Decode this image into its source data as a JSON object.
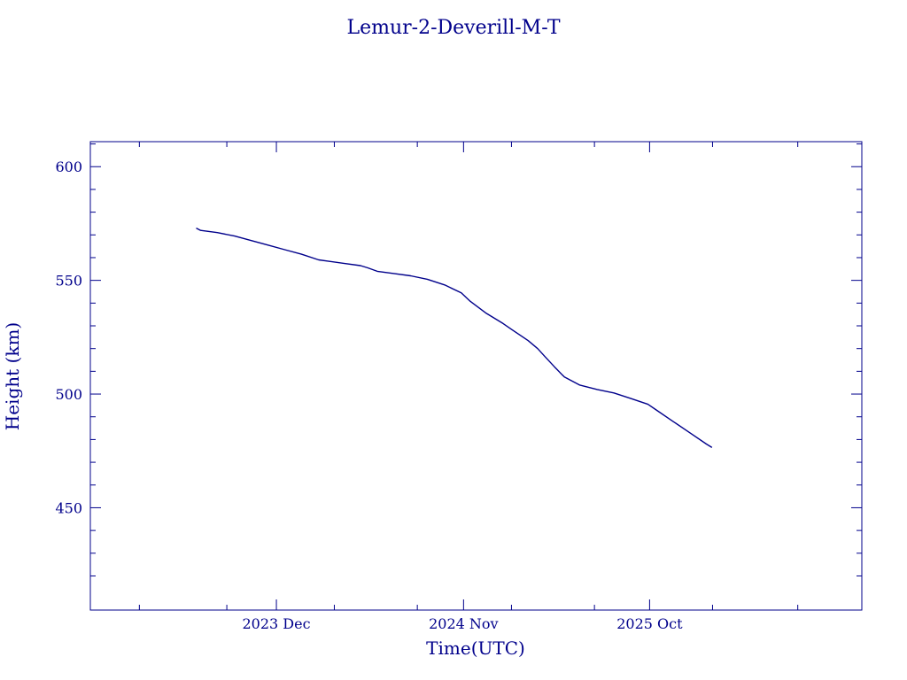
{
  "chart_data": {
    "type": "line",
    "title": "Lemur-2-Deverill-M-T",
    "xlabel": "Time(UTC)",
    "ylabel": "Height (km)",
    "xlim": [
      "2023-01-01",
      "2026-10-17"
    ],
    "ylim": [
      405,
      611
    ],
    "x_ticks": [
      {
        "date": "2023-12-01",
        "label": "2023 Dec"
      },
      {
        "date": "2024-11-01",
        "label": "2024 Nov"
      },
      {
        "date": "2025-10-01",
        "label": "2025 Oct"
      }
    ],
    "x_minor_ticks": [
      "2023-03-30",
      "2023-09-03",
      "2024-03-14",
      "2024-08-10",
      "2025-01-26",
      "2025-06-24",
      "2026-01-22",
      "2026-06-24"
    ],
    "y_ticks": [
      450,
      500,
      550,
      600
    ],
    "y_minor_ticks": [
      420,
      430,
      440,
      460,
      470,
      480,
      490,
      510,
      520,
      530,
      540,
      560,
      570,
      580,
      590,
      610
    ],
    "grid": false,
    "color": "#00008b",
    "series": [
      {
        "x": [
          "2023-07-10",
          "2023-07-18",
          "2023-08-17",
          "2023-09-17",
          "2023-10-17",
          "2023-11-16",
          "2023-12-16",
          "2024-01-15",
          "2024-02-15",
          "2024-03-01",
          "2024-03-31",
          "2024-04-30",
          "2024-05-13",
          "2024-05-30",
          "2024-06-29",
          "2024-07-29",
          "2024-08-28",
          "2024-09-28",
          "2024-10-28",
          "2024-11-12",
          "2024-12-12",
          "2025-01-11",
          "2025-01-26",
          "2025-02-25",
          "2025-03-14",
          "2025-03-27",
          "2025-04-13",
          "2025-05-01",
          "2025-05-28",
          "2025-06-29",
          "2025-07-29",
          "2025-08-29",
          "2025-09-28",
          "2025-10-13",
          "2025-11-12",
          "2025-12-12",
          "2026-01-11",
          "2026-01-21"
        ],
        "y": [
          573,
          572,
          571,
          569.5,
          567.5,
          565.5,
          563.5,
          561.5,
          559,
          558.5,
          557.5,
          556.5,
          555.5,
          554,
          553,
          552,
          550.5,
          548,
          544.5,
          541,
          535.5,
          531,
          528.5,
          523.5,
          520,
          516.5,
          512,
          507.5,
          504,
          502,
          500.5,
          498,
          495.5,
          493,
          488,
          483,
          478,
          476.5
        ]
      }
    ]
  }
}
